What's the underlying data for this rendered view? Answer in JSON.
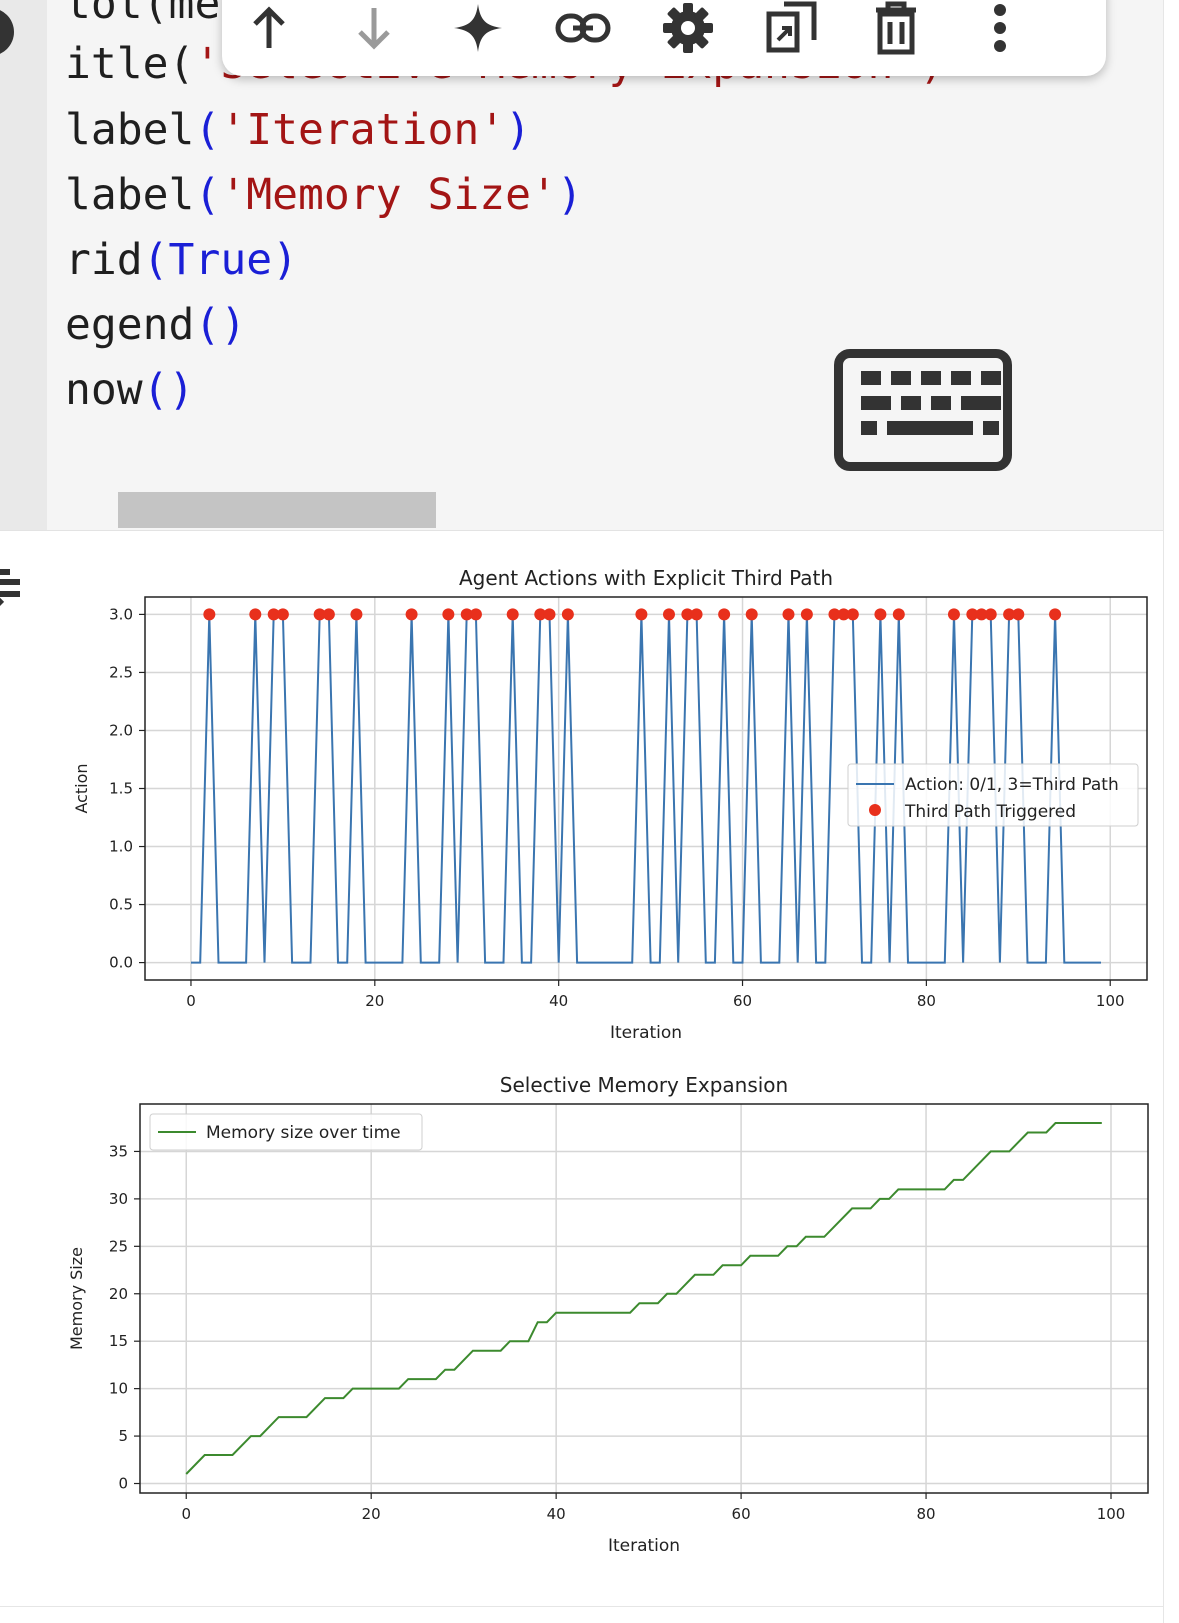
{
  "code_lines": [
    {
      "prefix": "tot(me",
      "parts": []
    },
    {
      "prefix": "itle(",
      "parts": [
        {
          "t": "'Selective Memory Expansion')",
          "c": "str"
        }
      ]
    },
    {
      "prefix": "label",
      "parts": [
        {
          "t": "(",
          "c": "kw"
        },
        {
          "t": "'Iteration'",
          "c": "str"
        },
        {
          "t": ")",
          "c": "kw"
        }
      ]
    },
    {
      "prefix": "label",
      "parts": [
        {
          "t": "(",
          "c": "kw"
        },
        {
          "t": "'Memory Size'",
          "c": "str"
        },
        {
          "t": ")",
          "c": "kw"
        }
      ]
    },
    {
      "prefix": "rid",
      "parts": [
        {
          "t": "(True)",
          "c": "kw"
        }
      ]
    },
    {
      "prefix": "egend",
      "parts": [
        {
          "t": "()",
          "c": "kw"
        }
      ]
    },
    {
      "prefix": "now",
      "parts": [
        {
          "t": "()",
          "c": "kw"
        }
      ]
    }
  ],
  "toolbar": {
    "buttons": [
      "move-up",
      "move-down",
      "gemini-sparkle",
      "link",
      "settings",
      "mirror-cell",
      "delete",
      "more-options"
    ]
  },
  "chart_data": [
    {
      "type": "line",
      "title": "Agent Actions with Explicit Third Path",
      "xlabel": "Iteration",
      "ylabel": "Action",
      "xlim": [
        -5,
        104
      ],
      "ylim": [
        -0.15,
        3.15
      ],
      "xticks": [
        0,
        20,
        40,
        60,
        80,
        100
      ],
      "yticks": [
        0.0,
        0.5,
        1.0,
        1.5,
        2.0,
        2.5,
        3.0
      ],
      "grid": true,
      "legend_position": "center-right",
      "series": [
        {
          "name": "Action: 0/1, 3=Third Path",
          "color": "#3a75b0",
          "x_range": [
            0,
            99
          ],
          "third_path_iterations": [
            2,
            7,
            9,
            10,
            14,
            15,
            18,
            24,
            28,
            30,
            31,
            35,
            38,
            39,
            41,
            49,
            52,
            54,
            55,
            58,
            61,
            65,
            67,
            70,
            71,
            72,
            75,
            77,
            83,
            85,
            86,
            87,
            89,
            90,
            94
          ],
          "base_value": 0,
          "triggered_value": 3
        },
        {
          "name": "Third Path Triggered",
          "color": "#e8301c",
          "marker": "circle"
        }
      ]
    },
    {
      "type": "line",
      "title": "Selective Memory Expansion",
      "xlabel": "Iteration",
      "ylabel": "Memory Size",
      "xlim": [
        -5,
        104
      ],
      "ylim": [
        -1,
        40
      ],
      "xticks": [
        0,
        20,
        40,
        60,
        80,
        100
      ],
      "yticks": [
        0,
        5,
        10,
        15,
        20,
        25,
        30,
        35
      ],
      "grid": true,
      "legend_position": "top-left",
      "series": [
        {
          "name": "Memory size over time",
          "color": "#3c8a2e",
          "x": [
            0,
            2,
            5,
            7,
            8,
            10,
            13,
            15,
            17,
            18,
            23,
            24,
            27,
            28,
            29,
            31,
            34,
            35,
            37,
            38,
            39,
            40,
            48,
            49,
            51,
            52,
            53,
            55,
            57,
            58,
            60,
            61,
            64,
            65,
            66,
            67,
            69,
            72,
            74,
            75,
            76,
            77,
            82,
            83,
            84,
            86,
            87,
            89,
            91,
            93,
            94,
            99
          ],
          "y": [
            1,
            3,
            3,
            5,
            5,
            7,
            7,
            9,
            9,
            10,
            10,
            11,
            11,
            12,
            12,
            14,
            14,
            15,
            15,
            17,
            17,
            18,
            18,
            19,
            19,
            20,
            20,
            22,
            22,
            23,
            23,
            24,
            24,
            25,
            25,
            26,
            26,
            29,
            29,
            30,
            30,
            31,
            31,
            32,
            32,
            34,
            35,
            35,
            37,
            37,
            38,
            38
          ]
        }
      ]
    }
  ]
}
